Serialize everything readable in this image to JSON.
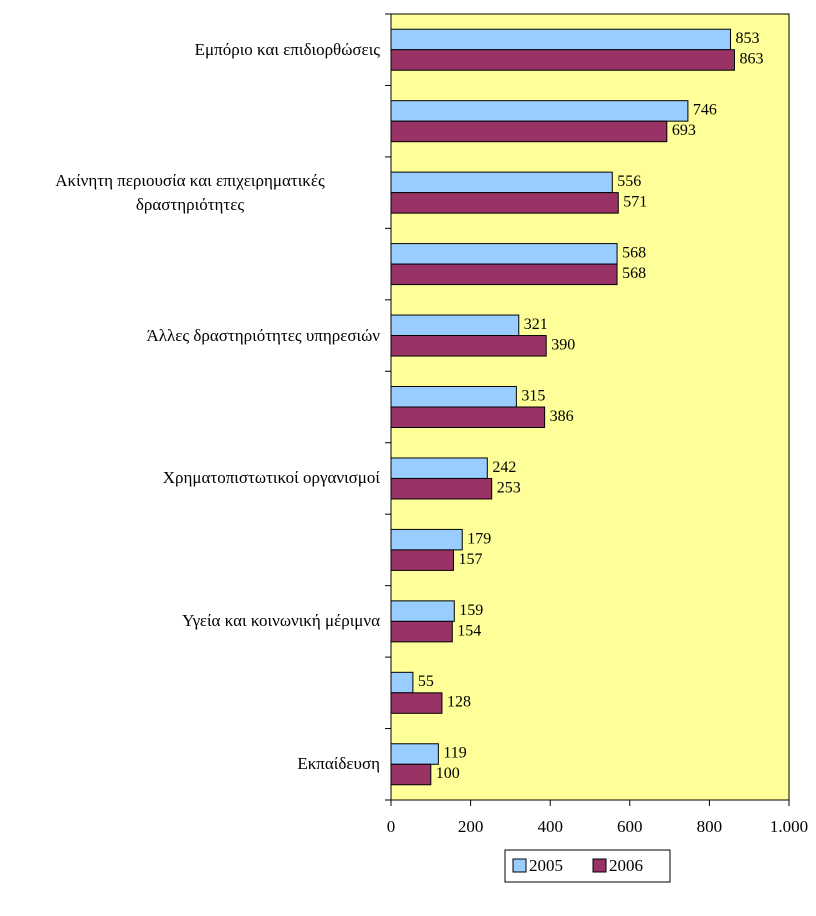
{
  "chart_data": {
    "type": "bar",
    "orientation": "horizontal",
    "categories": [
      "Εμπόριο και επιδιορθώσεις",
      null,
      "Ακίνητη περιουσία και επιχειρηματικές δραστηριότητες",
      null,
      "Άλλες δραστηριότητες υπηρεσιών",
      null,
      "Χρηματοπιστωτικοί οργανισμοί",
      null,
      "Υγεία και κοινωνική μέριμνα",
      null,
      "Εκπαίδευση"
    ],
    "series": [
      {
        "name": "2005",
        "color": "#99ccff",
        "values": [
          853,
          746,
          556,
          568,
          321,
          315,
          242,
          179,
          159,
          55,
          119
        ]
      },
      {
        "name": "2006",
        "color": "#993366",
        "values": [
          863,
          693,
          571,
          568,
          390,
          386,
          253,
          157,
          154,
          128,
          100
        ]
      }
    ],
    "xlim": [
      0,
      1000
    ],
    "xticks": [
      0,
      200,
      400,
      600,
      800,
      {
        "value": 1000,
        "label": "1.000"
      }
    ],
    "plot_background": "#ffff99",
    "legend": "bottom"
  }
}
